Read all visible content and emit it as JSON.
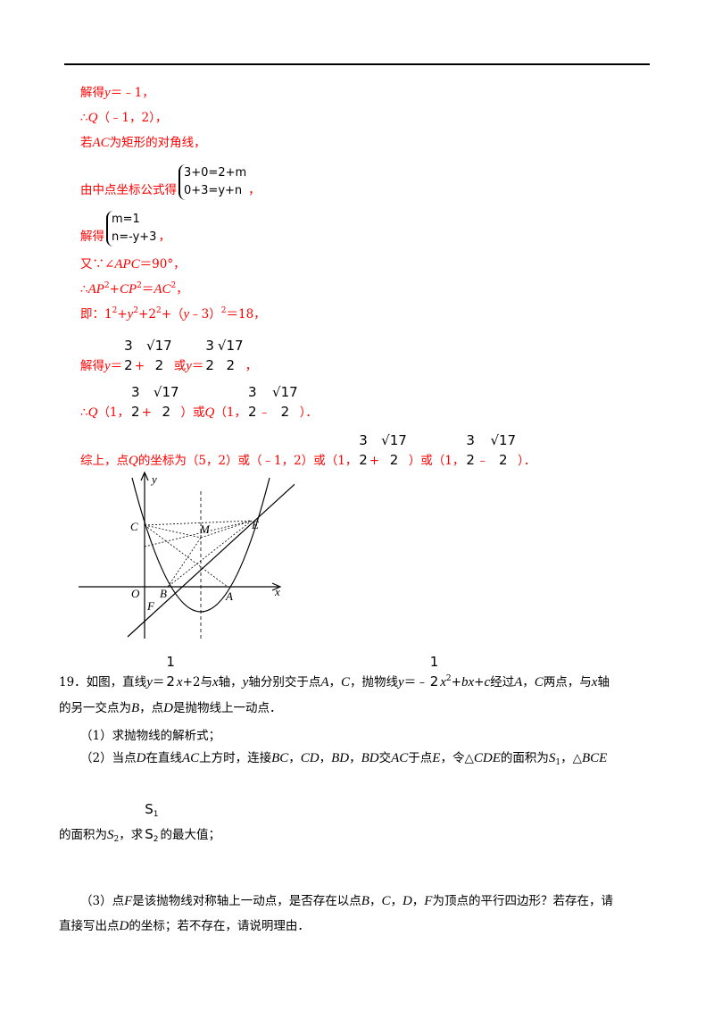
{
  "solution": [
    [
      "解得",
      "y",
      "＝﹣1，"
    ],
    [
      "∴",
      "Q",
      "（﹣1，2），"
    ],
    [
      "若",
      "AC",
      "为矩形的对角线，"
    ],
    [
      "由中点坐标公式得",
      "3+0=2+m",
      "0+3=y+n",
      "，"
    ],
    [
      "解得",
      "m=1",
      "n=-y+3",
      "，"
    ],
    [
      "又∵∠",
      "APC",
      "＝90°，"
    ],
    [
      "∴",
      "AP",
      "2",
      "+",
      "CP",
      "2",
      "＝",
      "AC",
      "2",
      "，"
    ],
    [
      "即：1",
      "2",
      "+",
      "y",
      "2",
      "+2",
      "2",
      "+（",
      "y",
      "﹣3）",
      "2",
      "＝18，"
    ],
    [
      "解得",
      "y",
      "＝",
      "3",
      "2",
      "+",
      "√17",
      "2",
      "或",
      "y",
      "＝",
      "3",
      "2",
      "√17",
      "2",
      "，"
    ],
    [
      "∴",
      "Q",
      "（1，",
      "3",
      "2",
      "+",
      "√17",
      "2",
      "）或",
      "Q",
      "（1，",
      "3",
      "2",
      "﹣",
      "√17",
      "2",
      "）．"
    ],
    [
      "综上，点",
      "Q",
      "的坐标为（5，2）或（﹣1，2）或（1，",
      "3",
      "2",
      "+",
      "√17",
      "2",
      "）或（1，",
      "3",
      "2",
      "﹣",
      "√17",
      "2",
      "）．"
    ]
  ],
  "figure": {
    "labels": [
      "y",
      "C",
      "M",
      "E",
      "O",
      "B",
      "A",
      "x",
      "F"
    ]
  },
  "problem": [
    [
      "19．如图，直线",
      "y",
      "＝",
      "1",
      "2",
      "x",
      "+2与",
      "x",
      "轴，",
      "y",
      "轴分别交于点",
      "A",
      "，",
      "C",
      "，抛物线",
      "y",
      "＝﹣",
      "1",
      "2",
      "x",
      "2",
      "+",
      "bx",
      "+",
      "c",
      "经过",
      "A",
      "，",
      "C",
      "两点，与",
      "x",
      "轴"
    ],
    [
      "的另一交点为",
      "B",
      "，点",
      "D",
      "是抛物线上一动点．"
    ],
    [
      "（1）求抛物线的解析式；"
    ],
    [
      "（2）当点",
      "D",
      "在直线",
      "AC",
      "上方时，连接",
      "BC",
      "，",
      "CD",
      "，",
      "BD",
      "，",
      "BD",
      "交",
      "AC",
      "于点",
      "E",
      "，令△",
      "CDE",
      "的面积为",
      "S",
      "1",
      "，△",
      "BCE"
    ],
    [
      "的面积为",
      "S",
      "2",
      "，求",
      "S",
      "1",
      "S",
      "2",
      "的最大值；"
    ],
    [
      "（3）点",
      "F",
      "是该抛物线对称轴上一动点，是否存在以点",
      "B",
      "，",
      "C",
      "，",
      "D",
      "，",
      "F",
      "为顶点的平行四边形？若存在，请"
    ],
    [
      "直接写出点",
      "D",
      "的坐标；若不存在，请说明理由．"
    ]
  ]
}
